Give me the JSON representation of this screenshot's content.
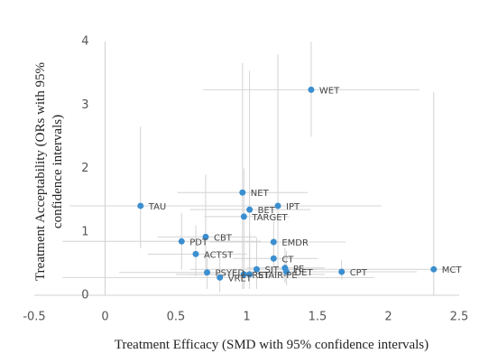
{
  "chart_data": {
    "type": "scatter",
    "xlabel": "Treatment Efficacy (SMD with 95% confidence intervals)",
    "ylabel": [
      "Treatment Acceptability (ORs with 95%",
      "confidence intervals)"
    ],
    "xlim": [
      -0.5,
      2.5
    ],
    "xticks": [
      -0.5,
      0,
      0.5,
      1,
      1.5,
      2,
      2.5
    ],
    "ylim": [
      0,
      4
    ],
    "yticks": [
      0,
      1,
      2,
      3,
      4
    ],
    "color": "#3b8fd0",
    "error_color": "#d4d4d4",
    "points": [
      {
        "label": "WET",
        "x": 1.455,
        "y": 3.24,
        "x_ci": [
          0.69,
          2.22
        ],
        "y_ci": [
          2.5,
          4.0
        ]
      },
      {
        "label": "NET",
        "x": 0.97,
        "y": 1.62,
        "x_ci": [
          0.51,
          1.43
        ],
        "y_ci": [
          0.1,
          3.66
        ]
      },
      {
        "label": "BET",
        "x": 1.02,
        "y": 1.35,
        "x_ci": [
          0.6,
          1.45
        ],
        "y_ci": [
          0.3,
          3.54
        ]
      },
      {
        "label": "IPT",
        "x": 1.22,
        "y": 1.41,
        "x_ci": [
          0.55,
          1.95
        ],
        "y_ci": [
          0.4,
          3.8
        ]
      },
      {
        "label": "TARGET",
        "x": 0.98,
        "y": 1.24,
        "x_ci": [
          0.7,
          1.3
        ],
        "y_ci": [
          0.6,
          2.0
        ]
      },
      {
        "label": "TAU",
        "x": 0.25,
        "y": 1.41,
        "x_ci": [
          -0.25,
          0.75
        ],
        "y_ci": [
          0.74,
          2.66
        ]
      },
      {
        "label": "CBT",
        "x": 0.71,
        "y": 0.92,
        "x_ci": [
          0.37,
          1.07
        ],
        "y_ci": [
          0.3,
          1.9
        ]
      },
      {
        "label": "PDT",
        "x": 0.54,
        "y": 0.85,
        "x_ci": [
          -0.3,
          1.1
        ],
        "y_ci": [
          0.4,
          1.3
        ]
      },
      {
        "label": "EMDR",
        "x": 1.19,
        "y": 0.84,
        "x_ci": [
          0.74,
          1.7
        ],
        "y_ci": [
          0.5,
          1.2
        ]
      },
      {
        "label": "ACTST",
        "x": 0.64,
        "y": 0.65,
        "x_ci": [
          0.3,
          1.0
        ],
        "y_ci": [
          0.3,
          1.1
        ]
      },
      {
        "label": "CT",
        "x": 1.19,
        "y": 0.58,
        "x_ci": [
          0.9,
          1.5
        ],
        "y_ci": [
          0.3,
          0.9
        ]
      },
      {
        "label": "MCT",
        "x": 2.32,
        "y": 0.41,
        "x_ci": [
          1.2,
          2.5
        ],
        "y_ci": [
          0.0,
          3.2
        ]
      },
      {
        "label": "CPT",
        "x": 1.67,
        "y": 0.37,
        "x_ci": [
          1.15,
          2.2
        ],
        "y_ci": [
          0.25,
          0.55
        ]
      },
      {
        "label": "PE",
        "x": 1.27,
        "y": 0.43,
        "x_ci": [
          1.0,
          1.55
        ],
        "y_ci": [
          0.2,
          0.75
        ]
      },
      {
        "label": "SIT",
        "x": 1.07,
        "y": 0.41,
        "x_ci": [
          0.6,
          1.5
        ],
        "y_ci": [
          0.1,
          0.9
        ]
      },
      {
        "label": "DET",
        "x": 1.28,
        "y": 0.37,
        "x_ci": [
          1.0,
          1.6
        ],
        "y_ci": [
          0.15,
          0.7
        ]
      },
      {
        "label": "STAIR-PE",
        "x": 1.02,
        "y": 0.33,
        "x_ci": [
          0.5,
          1.55
        ],
        "y_ci": [
          0.1,
          1.0
        ]
      },
      {
        "label": "RET",
        "x": 0.98,
        "y": 0.33,
        "x_ci": [
          0.6,
          1.4
        ],
        "y_ci": [
          0.1,
          0.6
        ]
      },
      {
        "label": "PSYED",
        "x": 0.72,
        "y": 0.36,
        "x_ci": [
          0.1,
          1.3
        ],
        "y_ci": [
          0.1,
          0.7
        ]
      },
      {
        "label": "VRET",
        "x": 0.81,
        "y": 0.28,
        "x_ci": [
          -0.3,
          1.9
        ],
        "y_ci": [
          0.05,
          0.6
        ]
      }
    ]
  }
}
